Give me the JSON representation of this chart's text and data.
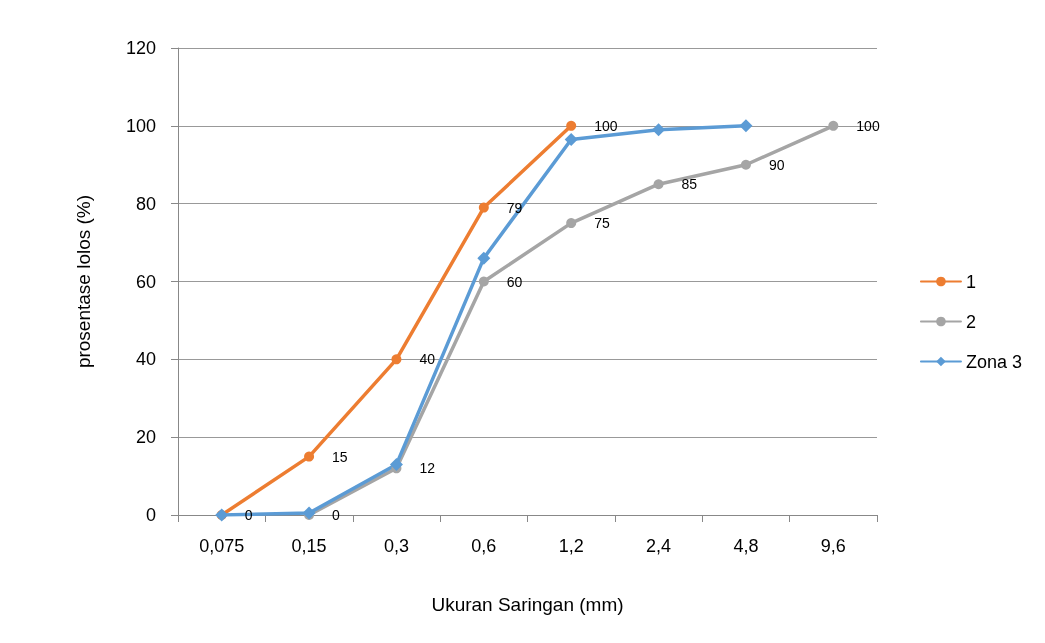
{
  "chart_data": {
    "type": "line",
    "xlabel": "Ukuran Saringan (mm)",
    "ylabel": "prosentase lolos (%)",
    "categories": [
      "0,075",
      "0,15",
      "0,3",
      "0,6",
      "1,2",
      "2,4",
      "4,8",
      "9,6"
    ],
    "ylim": [
      0,
      120
    ],
    "yticks": [
      0,
      20,
      40,
      60,
      80,
      100,
      120
    ],
    "grid": "y",
    "legend": "right",
    "series": [
      {
        "name": "1",
        "color": "#ed7d31",
        "marker": "circle",
        "values": [
          0,
          15,
          40,
          79,
          100,
          null,
          null,
          null
        ],
        "value_labels": [
          "0",
          "15",
          "40",
          "79",
          "100",
          null,
          null,
          null
        ]
      },
      {
        "name": "2",
        "color": "#a5a5a5",
        "marker": "circle",
        "values": [
          null,
          0,
          12,
          60,
          75,
          85,
          90,
          100
        ],
        "value_labels": [
          null,
          "0",
          "12",
          "60",
          "75",
          "85",
          "90",
          "100"
        ]
      },
      {
        "name": "Zona 3",
        "color": "#5b9bd5",
        "marker": "diamond",
        "values": [
          0,
          0.5,
          13,
          66,
          96.5,
          99,
          100,
          null
        ]
      }
    ]
  }
}
